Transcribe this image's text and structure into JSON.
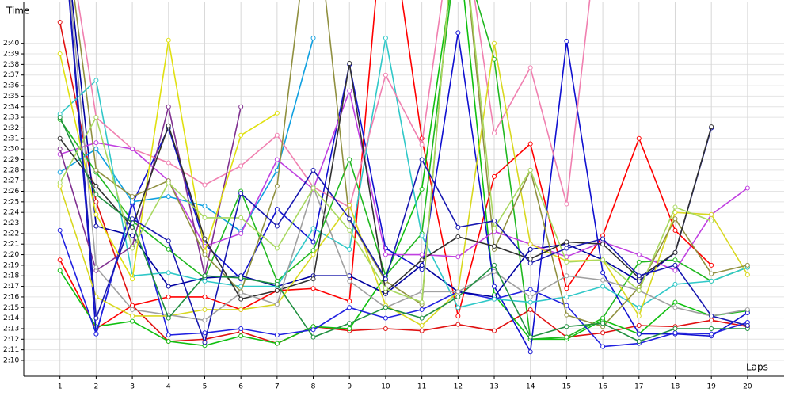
{
  "chart_data": {
    "type": "line",
    "ylabel": "Time",
    "xlabel": "Laps",
    "x": [
      1,
      2,
      3,
      4,
      5,
      6,
      7,
      8,
      9,
      10,
      11,
      12,
      13,
      14,
      15,
      16,
      17,
      18,
      19,
      20
    ],
    "xlim": [
      0,
      20.9
    ],
    "xticks": [
      1,
      2,
      3,
      4,
      5,
      6,
      7,
      8,
      9,
      10,
      11,
      12,
      13,
      14,
      15,
      16,
      17,
      18,
      19,
      20
    ],
    "ylim": [
      128.5,
      163.5
    ],
    "yticks": [
      {
        "value": 130,
        "label": "2:10"
      },
      {
        "value": 131,
        "label": "2:11"
      },
      {
        "value": 132,
        "label": "2:12"
      },
      {
        "value": 133,
        "label": "2:13"
      },
      {
        "value": 134,
        "label": "2:14"
      },
      {
        "value": 135,
        "label": "2:15"
      },
      {
        "value": 136,
        "label": "2:16"
      },
      {
        "value": 137,
        "label": "2:17"
      },
      {
        "value": 138,
        "label": "2:18"
      },
      {
        "value": 139,
        "label": "2:19"
      },
      {
        "value": 140,
        "label": "2:20"
      },
      {
        "value": 141,
        "label": "2:21"
      },
      {
        "value": 142,
        "label": "2:22"
      },
      {
        "value": 143,
        "label": "2:23"
      },
      {
        "value": 144,
        "label": "2:24"
      },
      {
        "value": 145,
        "label": "2:25"
      },
      {
        "value": 146,
        "label": "2:26"
      },
      {
        "value": 147,
        "label": "2:27"
      },
      {
        "value": 148,
        "label": "2:28"
      },
      {
        "value": 149,
        "label": "2:29"
      },
      {
        "value": 150,
        "label": "2:30"
      },
      {
        "value": 151,
        "label": "2:31"
      },
      {
        "value": 152,
        "label": "2:32"
      },
      {
        "value": 153,
        "label": "2:33"
      },
      {
        "value": 154,
        "label": "2:34"
      },
      {
        "value": 155,
        "label": "2:35"
      },
      {
        "value": 156,
        "label": "2:36"
      },
      {
        "value": 157,
        "label": "2:37"
      },
      {
        "value": 158,
        "label": "2:38"
      },
      {
        "value": 159,
        "label": "2:39"
      },
      {
        "value": 160,
        "label": "2:40"
      }
    ],
    "grid": true,
    "series": [
      {
        "color": "#e01010",
        "values": [
          162,
          145,
          135.2,
          131.8,
          132,
          132.7,
          131.6,
          133.2,
          132.8,
          133,
          132.8,
          133.4,
          132.8,
          134.8,
          132.2,
          132.6,
          133.3,
          133.2,
          133.8,
          133.2
        ]
      },
      {
        "color": "#ff0000",
        "values": [
          139.5,
          133,
          135.2,
          136,
          136,
          134.8,
          136.6,
          136.8,
          135.6,
          175,
          151,
          134.2,
          147.4,
          150.5,
          136.8,
          141.8,
          151,
          142.3,
          139,
          null
        ]
      },
      {
        "color": "#10c010",
        "values": [
          138.5,
          133.2,
          133.7,
          131.8,
          131.4,
          132.3,
          131.6,
          133.2,
          133,
          138,
          146.2,
          170,
          136.2,
          132,
          132,
          133.8,
          132.5,
          135.5,
          134.2,
          134.7
        ]
      },
      {
        "color": "#20b820",
        "values": [
          152.8,
          147.8,
          143.2,
          140.5,
          137.8,
          146,
          137.5,
          140.4,
          149,
          138,
          142,
          170,
          158.5,
          132,
          132.2,
          134,
          139.3,
          139.5,
          137.5,
          138.8
        ]
      },
      {
        "color": "#1010d0",
        "values": [
          175,
          132.5,
          144.8,
          152,
          141,
          137.7,
          144.3,
          141.2,
          158,
          140.6,
          138.6,
          161,
          137,
          130.8,
          160.2,
          138.3,
          132.5,
          132.5,
          132.3,
          134.5
        ]
      },
      {
        "color": "#2020e0",
        "values": [
          142.3,
          132.5,
          145,
          132.4,
          132.6,
          133,
          132.4,
          132.9,
          135,
          134,
          134.8,
          136.5,
          135.8,
          136.7,
          135.2,
          131.3,
          131.6,
          132.6,
          132.5,
          133.6
        ]
      },
      {
        "color": "#0000a0",
        "values": [
          175,
          142.7,
          141.8,
          137,
          137.8,
          138,
          137,
          138,
          138,
          136.3,
          139,
          136.5,
          136,
          140.5,
          141,
          139.5,
          137.5,
          140.2,
          152,
          null
        ]
      },
      {
        "color": "#10a0e0",
        "values": [
          147.8,
          150,
          145,
          145.5,
          144.6,
          142.2,
          148,
          160.5,
          null,
          null,
          null,
          null,
          null,
          null,
          null,
          null,
          null,
          null,
          null,
          null
        ]
      },
      {
        "color": "#30c8c8",
        "values": [
          153.3,
          156.5,
          138,
          138.3,
          137.5,
          137,
          137,
          142.5,
          140.5,
          160.5,
          141.8,
          135,
          135.8,
          135.5,
          136,
          137,
          135,
          137.2,
          137.5,
          138.8
        ]
      },
      {
        "color": "#f080b0",
        "values": [
          175,
          153,
          150,
          148.7,
          146.6,
          148.4,
          151.3,
          146.4,
          144.5,
          157,
          150.4,
          175,
          151.5,
          157.7,
          144.8,
          175,
          null,
          null,
          null,
          null
        ]
      },
      {
        "color": "#c040e0",
        "values": [
          149.5,
          150.6,
          150,
          147,
          140.8,
          142,
          149,
          146.2,
          155.5,
          140,
          140,
          139.8,
          142.2,
          141,
          139.8,
          141.2,
          140,
          138.5,
          143.8,
          146.3
        ]
      },
      {
        "color": "#803090",
        "values": [
          150,
          138.5,
          140.8,
          154,
          138,
          154,
          null,
          null,
          null,
          null,
          null,
          null,
          null,
          null,
          null,
          null,
          null,
          null,
          null,
          null
        ]
      },
      {
        "color": "#e0e010",
        "values": [
          159,
          143.8,
          137.7,
          160.3,
          140.3,
          151.3,
          153.4,
          null,
          null,
          null,
          null,
          null,
          null,
          null,
          null,
          null,
          null,
          null,
          null,
          null
        ]
      },
      {
        "color": "#d8d820",
        "values": [
          146.5,
          136,
          134.2,
          134.2,
          134.8,
          134.8,
          135.3,
          140,
          144.7,
          135.2,
          133.3,
          136.5,
          160,
          141,
          139.4,
          139.5,
          134.2,
          144,
          143.8,
          138.1
        ]
      },
      {
        "color": "#909040",
        "values": [
          175,
          148,
          145.5,
          147,
          140,
          136.5,
          146.5,
          175,
          143.3,
          137.5,
          135.3,
          175,
          140.5,
          148,
          134.3,
          133.2,
          136.9,
          143.4,
          138.2,
          139
        ]
      },
      {
        "color": "#303030",
        "values": [
          151,
          146.5,
          142.6,
          152.2,
          141.5,
          135.8,
          136.6,
          137.7,
          158.1,
          136.5,
          139.5,
          141.7,
          140.8,
          139.6,
          141.2,
          141,
          137.8,
          140.2,
          152.1,
          null
        ]
      },
      {
        "color": "#a0a0a0",
        "values": [
          175,
          138.8,
          134.8,
          134.3,
          133.8,
          136.4,
          135.3,
          146.4,
          137.5,
          135,
          136.5,
          136.5,
          138.4,
          136,
          138,
          137.6,
          136.6,
          135,
          134.2,
          134.8
        ]
      },
      {
        "color": "#209040",
        "values": [
          153,
          145.7,
          143,
          134,
          138,
          137.8,
          137.2,
          132.2,
          133.5,
          135,
          134,
          136,
          139,
          132.2,
          133.2,
          133.5,
          131.8,
          133,
          133,
          133
        ]
      },
      {
        "color": "#a8d860",
        "values": [
          146.8,
          153,
          140.6,
          146.8,
          143.5,
          143.5,
          140.6,
          146.3,
          142.3,
          136.8,
          135.5,
          175,
          142.5,
          148,
          139.3,
          139.5,
          136.6,
          144.5,
          143.2,
          null
        ]
      },
      {
        "color": "#1818b0",
        "values": [
          175,
          134,
          143.4,
          141.3,
          131.7,
          145.8,
          142.7,
          148,
          143.4,
          137.7,
          149,
          142.6,
          143.2,
          139.2,
          140.6,
          141.5,
          138,
          139,
          134.2,
          133.3
        ]
      }
    ]
  }
}
